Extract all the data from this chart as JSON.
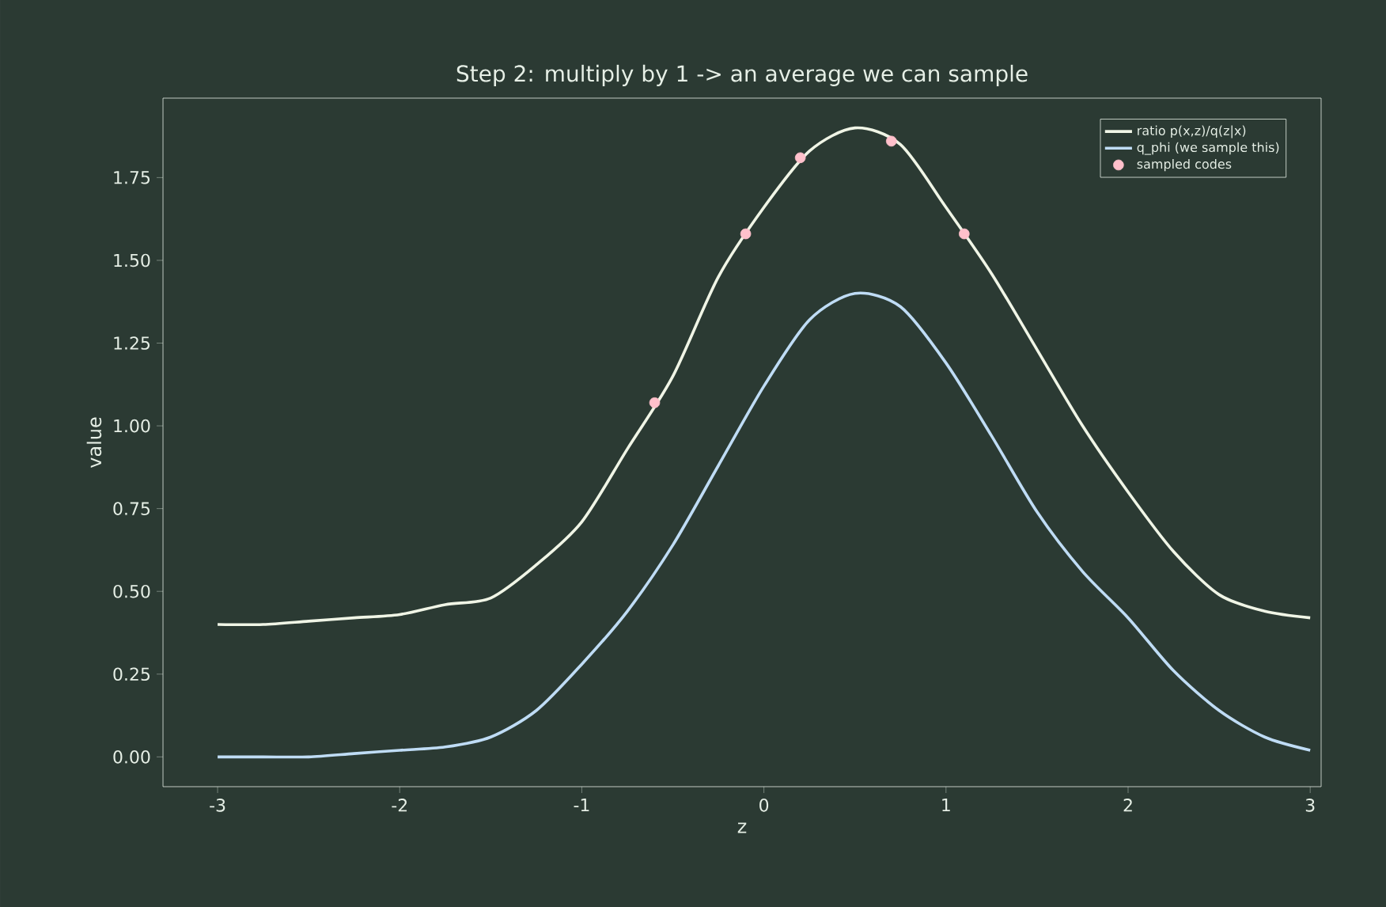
{
  "chart_data": {
    "type": "line",
    "title": "Step 2: multiply by 1 -> an average we can sample",
    "xlabel": "z",
    "ylabel": "value",
    "xlim": [
      -3.3,
      3.06
    ],
    "ylim": [
      -0.09,
      1.99
    ],
    "xticks": [
      -3,
      -2,
      -1,
      0,
      1,
      2,
      3
    ],
    "yticks": [
      {
        "value": 0,
        "label": "0.00"
      },
      {
        "value": 0.25,
        "label": "0.25"
      },
      {
        "value": 0.5,
        "label": "0.50"
      },
      {
        "value": 0.75,
        "label": "0.75"
      },
      {
        "value": 1,
        "label": "1.00"
      },
      {
        "value": 1.25,
        "label": "1.25"
      },
      {
        "value": 1.5,
        "label": "1.50"
      },
      {
        "value": 1.75,
        "label": "1.75"
      }
    ],
    "x": [
      -3,
      -2.75,
      -2.5,
      -2.25,
      -2,
      -1.75,
      -1.5,
      -1.25,
      -1,
      -0.75,
      -0.5,
      -0.25,
      0,
      0.25,
      0.5,
      0.75,
      1,
      1.25,
      1.5,
      1.75,
      2,
      2.25,
      2.5,
      2.75,
      3
    ],
    "series": [
      {
        "name": "ratio p(x,z)/q(z|x)",
        "color": "#f0f5e6",
        "values": [
          0.4,
          0.4,
          0.41,
          0.42,
          0.43,
          0.46,
          0.48,
          0.58,
          0.71,
          0.93,
          1.15,
          1.45,
          1.66,
          1.83,
          1.9,
          1.85,
          1.66,
          1.46,
          1.23,
          1.0,
          0.8,
          0.62,
          0.49,
          0.44,
          0.42
        ]
      },
      {
        "name": "q_phi (we sample this)",
        "color": "#bfdcf5",
        "values": [
          0.0,
          0.0,
          0.0,
          0.01,
          0.02,
          0.03,
          0.06,
          0.14,
          0.28,
          0.44,
          0.64,
          0.88,
          1.12,
          1.32,
          1.4,
          1.36,
          1.19,
          0.97,
          0.74,
          0.56,
          0.42,
          0.26,
          0.14,
          0.06,
          0.02
        ]
      },
      {
        "name": "sampled codes",
        "type": "scatter",
        "marker": "circle",
        "color": "#ffc0cb",
        "x": [
          -0.6,
          -0.1,
          0.2,
          0.7,
          1.1
        ],
        "values": [
          1.07,
          1.58,
          1.81,
          1.86,
          1.58
        ]
      }
    ],
    "legend": "top right",
    "grid": false,
    "line_style": "solid",
    "marker": "none"
  }
}
